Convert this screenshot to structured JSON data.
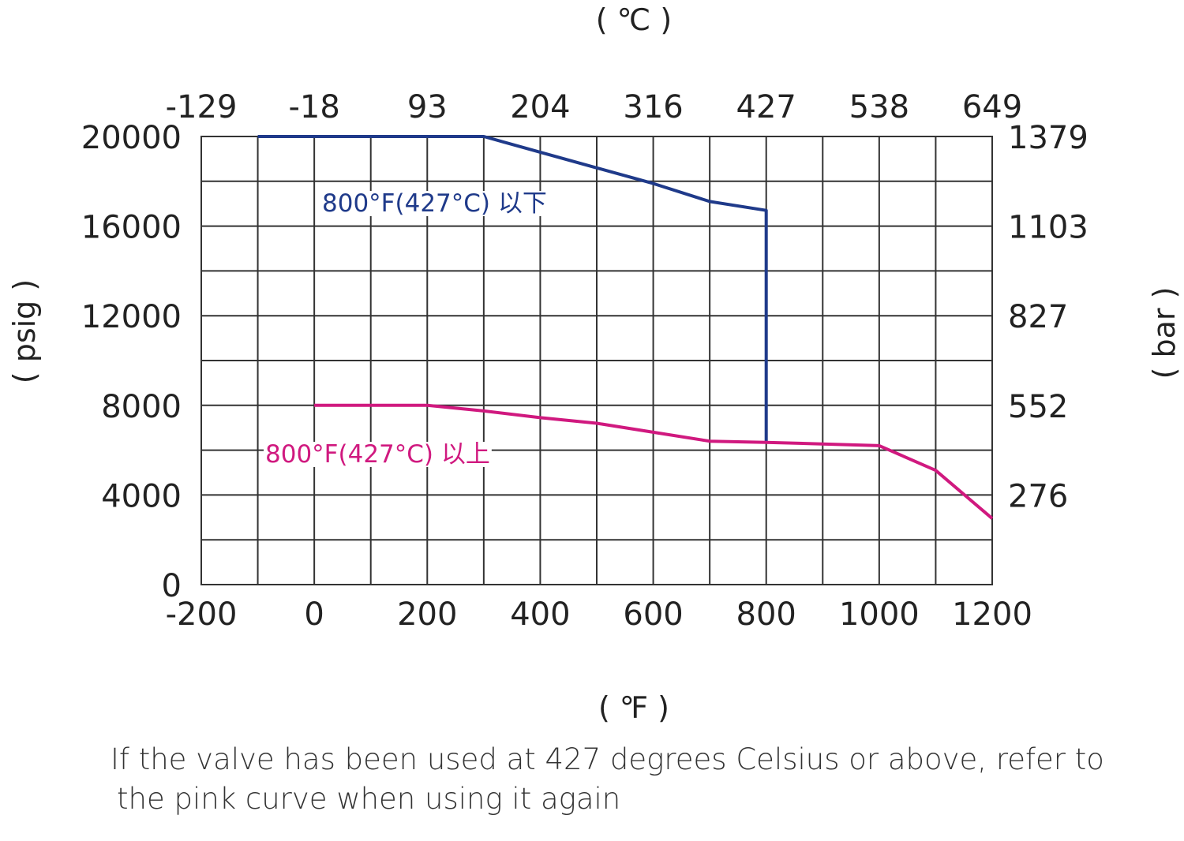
{
  "chart_data": {
    "type": "line",
    "x_unit_label": "( ℉ )",
    "x2_unit_label": "( ℃ )",
    "y_unit_label": "( psig )",
    "y2_unit_label": "( bar )",
    "x_ticks": [
      "-200",
      "0",
      "200",
      "400",
      "600",
      "800",
      "1000",
      "1200"
    ],
    "x2_ticks": [
      "-129",
      "-18",
      "93",
      "204",
      "316",
      "427",
      "538",
      "649"
    ],
    "y_ticks": [
      "0",
      "4000",
      "8000",
      "12000",
      "16000",
      "20000"
    ],
    "y2_ticks": [
      "276",
      "552",
      "827",
      "1103",
      "1379"
    ],
    "xlim": [
      -200,
      1200
    ],
    "ylim": [
      0,
      20000
    ],
    "grid": true,
    "series": [
      {
        "name": "800°F(427°C) 以下",
        "color": "#1f3a8a",
        "x": [
          -100,
          300,
          400,
          500,
          600,
          700,
          800,
          800
        ],
        "y": [
          20000,
          20000,
          19300,
          18600,
          17900,
          17100,
          16700,
          6400
        ]
      },
      {
        "name": "800°F(427°C) 以上",
        "color": "#d0197f",
        "x": [
          0,
          200,
          300,
          400,
          500,
          600,
          700,
          800,
          1000,
          1100,
          1200
        ],
        "y": [
          8000,
          8000,
          7750,
          7450,
          7200,
          6800,
          6400,
          6350,
          6200,
          5100,
          2950
        ]
      }
    ]
  },
  "caption": {
    "line1": "If the valve has been used at 427 degrees Celsius or above, refer to",
    "line2": "the pink curve when using it again"
  }
}
